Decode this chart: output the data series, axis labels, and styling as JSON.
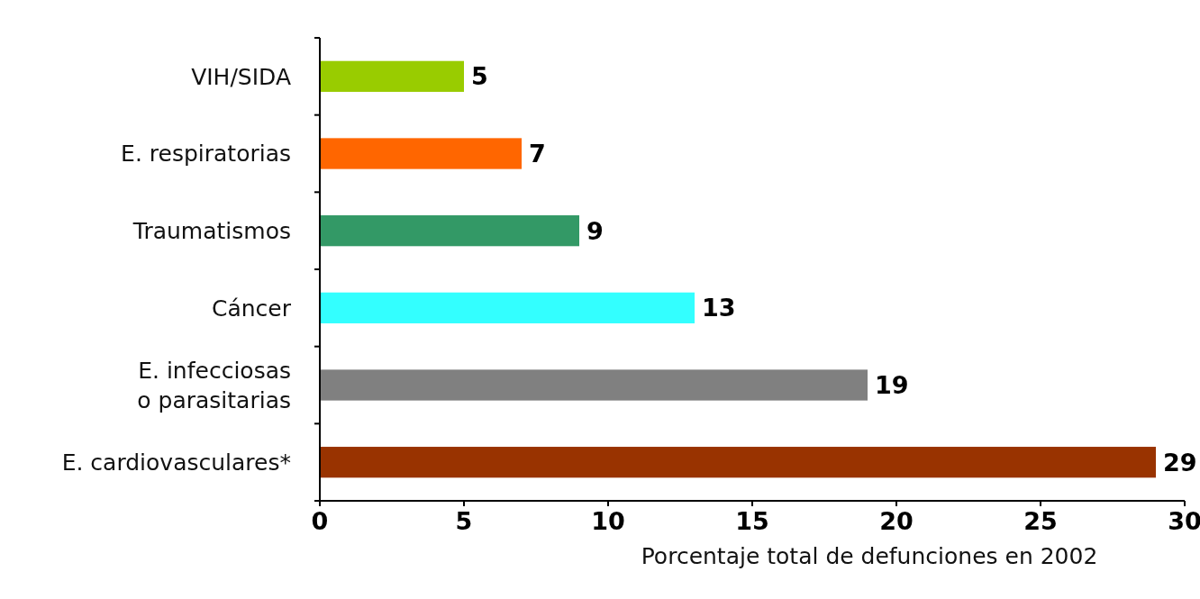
{
  "chart_data": {
    "type": "bar",
    "orientation": "horizontal",
    "xlabel": "Porcentaje total de defunciones en 2002",
    "categories": [
      "VIH/SIDA",
      "E. respiratorias",
      "Traumatismos",
      "Cáncer",
      "E. infecciosas\no parasitarias",
      "E. cardiovasculares*"
    ],
    "values": [
      5,
      7,
      9,
      13,
      19,
      29
    ],
    "colors": [
      "#99cc00",
      "#ff6600",
      "#339966",
      "#33ffff",
      "#808080",
      "#993300"
    ],
    "xlim": [
      0,
      30
    ],
    "xticks": [
      0,
      5,
      10,
      15,
      20,
      25,
      30
    ],
    "data_labels": true,
    "grid": false
  }
}
